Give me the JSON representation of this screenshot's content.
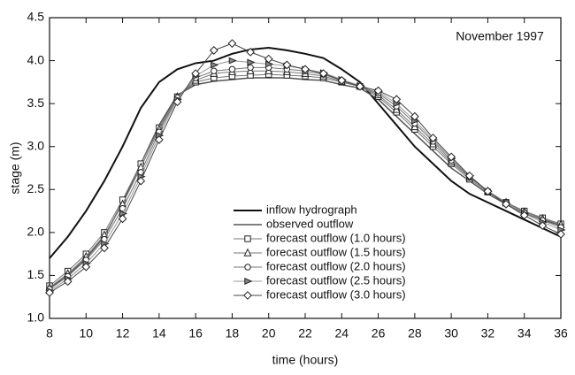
{
  "chart_data": {
    "type": "line",
    "annotation": "November 1997",
    "x_label": "time (hours)",
    "y_label": "stage (m)",
    "x": [
      8,
      9,
      10,
      11,
      12,
      13,
      14,
      15,
      16,
      17,
      18,
      19,
      20,
      21,
      22,
      23,
      24,
      25,
      26,
      27,
      28,
      29,
      30,
      31,
      32,
      33,
      34,
      35,
      36
    ],
    "series": [
      {
        "name": "inflow hydrograph",
        "color": "#111111",
        "marker": "none",
        "width": 2,
        "values": [
          1.7,
          1.95,
          2.25,
          2.6,
          3.0,
          3.45,
          3.75,
          3.9,
          3.97,
          4.0,
          4.08,
          4.13,
          4.15,
          4.12,
          4.08,
          4.03,
          3.9,
          3.75,
          3.5,
          3.25,
          3.0,
          2.8,
          2.6,
          2.45,
          2.35,
          2.25,
          2.15,
          2.05,
          1.95
        ]
      },
      {
        "name": "observed outflow",
        "color": "#555555",
        "marker": "none",
        "width": 1.5,
        "values": [
          1.35,
          1.5,
          1.7,
          1.95,
          2.35,
          2.8,
          3.25,
          3.6,
          3.72,
          3.76,
          3.78,
          3.8,
          3.8,
          3.8,
          3.78,
          3.77,
          3.72,
          3.68,
          3.55,
          3.35,
          3.15,
          2.95,
          2.75,
          2.6,
          2.45,
          2.33,
          2.22,
          2.15,
          2.08
        ]
      },
      {
        "name": "forecast outflow (1.0 hours)",
        "color": "#777777",
        "marker": "square",
        "width": 1,
        "values": [
          1.38,
          1.55,
          1.75,
          2.0,
          2.38,
          2.8,
          3.22,
          3.58,
          3.75,
          3.8,
          3.82,
          3.83,
          3.84,
          3.83,
          3.82,
          3.8,
          3.75,
          3.7,
          3.58,
          3.4,
          3.2,
          3.0,
          2.8,
          2.62,
          2.47,
          2.35,
          2.25,
          2.17,
          2.1
        ]
      },
      {
        "name": "forecast outflow (1.5 hours)",
        "color": "#777777",
        "marker": "triangle",
        "width": 1,
        "values": [
          1.36,
          1.52,
          1.72,
          1.97,
          2.33,
          2.76,
          3.2,
          3.58,
          3.77,
          3.85,
          3.87,
          3.88,
          3.88,
          3.87,
          3.85,
          3.82,
          3.76,
          3.7,
          3.6,
          3.43,
          3.23,
          3.03,
          2.82,
          2.64,
          2.48,
          2.35,
          2.24,
          2.16,
          2.09
        ]
      },
      {
        "name": "forecast outflow (2.0 hours)",
        "color": "#777777",
        "marker": "circle",
        "width": 1,
        "values": [
          1.34,
          1.49,
          1.68,
          1.92,
          2.28,
          2.7,
          3.17,
          3.57,
          3.8,
          3.88,
          3.9,
          3.92,
          3.92,
          3.9,
          3.88,
          3.84,
          3.77,
          3.7,
          3.62,
          3.47,
          3.27,
          3.06,
          2.84,
          2.65,
          2.48,
          2.35,
          2.23,
          2.14,
          2.06
        ]
      },
      {
        "name": "forecast outflow (2.5 hours)",
        "color": "#999999",
        "marker": "right-triangle",
        "width": 1,
        "values": [
          1.32,
          1.46,
          1.64,
          1.87,
          2.22,
          2.65,
          3.13,
          3.55,
          3.82,
          3.95,
          4.0,
          3.98,
          3.96,
          3.94,
          3.9,
          3.86,
          3.78,
          3.71,
          3.64,
          3.5,
          3.3,
          3.08,
          2.86,
          2.66,
          2.48,
          2.34,
          2.22,
          2.12,
          2.03
        ]
      },
      {
        "name": "forecast outflow (3.0 hours)",
        "color": "#444444",
        "marker": "diamond",
        "width": 1,
        "values": [
          1.3,
          1.43,
          1.6,
          1.82,
          2.16,
          2.6,
          3.08,
          3.52,
          3.85,
          4.12,
          4.2,
          4.1,
          4.02,
          3.95,
          3.9,
          3.85,
          3.77,
          3.7,
          3.65,
          3.55,
          3.35,
          3.1,
          2.88,
          2.66,
          2.48,
          2.33,
          2.2,
          2.08,
          1.98
        ]
      }
    ],
    "xlim": [
      8,
      36
    ],
    "xticks": [
      8,
      10,
      12,
      14,
      16,
      18,
      20,
      22,
      24,
      26,
      28,
      30,
      32,
      34,
      36
    ],
    "ylim": [
      1.0,
      4.5
    ],
    "yticks": [
      {
        "value": 1.0,
        "label": "1.0"
      },
      {
        "value": 1.5,
        "label": "1.5"
      },
      {
        "value": 2.0,
        "label": "2.0"
      },
      {
        "value": 2.5,
        "label": "2.5"
      },
      {
        "value": 3.0,
        "label": "3.0"
      },
      {
        "value": 3.5,
        "label": "3.5"
      },
      {
        "value": 4.0,
        "label": "4.0"
      },
      {
        "value": 4.5,
        "label": "4.5"
      }
    ],
    "grid": false
  }
}
